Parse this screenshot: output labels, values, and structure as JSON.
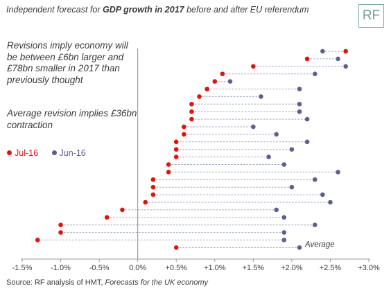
{
  "header": {
    "title_pre": "Independent forecast for ",
    "title_bold": "GDP growth in 2017",
    "title_post": " before and after EU referendum",
    "logo": "RF"
  },
  "annotations": {
    "revisions": "Revisions imply economy will be between £6bn larger and £78bn smaller in 2017 than previously thought",
    "average": "Average revision implies £36bn contraction"
  },
  "source": {
    "prefix": "Source: RF analysis of HMT, ",
    "italic": "Forecasts for the UK economy"
  },
  "colors": {
    "jul": "#e3120b",
    "jun": "#5d5f91",
    "connector": "#9aa3c2",
    "axis": "#9a9a9a"
  },
  "chart_data": {
    "type": "scatter",
    "subtype": "dumbbell",
    "xlim": [
      -1.5,
      3.0
    ],
    "xticks": [
      -1.5,
      -1.0,
      -0.5,
      0.0,
      0.5,
      1.0,
      1.5,
      2.0,
      2.5,
      3.0
    ],
    "xtick_labels": [
      "-1.5%",
      "-1.0%",
      "-0.5%",
      "0.0%",
      "+0.5%",
      "+1.0%",
      "+1.5%",
      "+2.0%",
      "+2.5%",
      "+3.0%"
    ],
    "series": [
      {
        "name": "Jul-16",
        "color": "#e3120b",
        "values": [
          2.7,
          2.2,
          1.5,
          1.1,
          1.0,
          0.9,
          0.8,
          0.7,
          0.7,
          0.7,
          0.6,
          0.6,
          0.5,
          0.5,
          0.5,
          0.4,
          0.4,
          0.2,
          0.2,
          0.2,
          0.1,
          -0.2,
          -0.4,
          -1.0,
          -1.0,
          -1.3,
          0.5
        ]
      },
      {
        "name": "Jun-16",
        "color": "#5d5f91",
        "values": [
          2.4,
          2.6,
          2.7,
          2.3,
          1.2,
          2.1,
          1.6,
          2.1,
          2.1,
          2.2,
          1.5,
          1.8,
          2.2,
          2.0,
          1.7,
          1.9,
          2.6,
          2.3,
          2.0,
          2.4,
          2.5,
          1.8,
          1.9,
          2.3,
          1.9,
          1.9,
          2.1
        ]
      }
    ],
    "average_row_label": "Average",
    "legend": [
      "Jul-16",
      "Jun-16"
    ],
    "legend_position": "middle-left"
  }
}
